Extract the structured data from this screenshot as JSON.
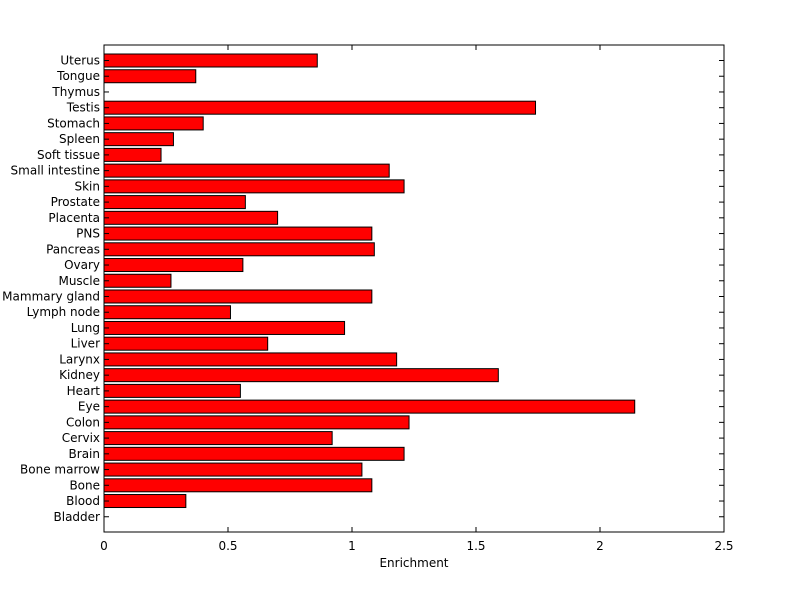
{
  "chart_data": {
    "type": "bar",
    "orientation": "horizontal",
    "title": "",
    "xlabel": "Enrichment",
    "ylabel": "",
    "xlim": [
      0,
      2.5
    ],
    "xticks": [
      0,
      0.5,
      1,
      1.5,
      2,
      2.5
    ],
    "xtick_labels": [
      "0",
      "0.5",
      "1",
      "1.5",
      "2",
      "2.5"
    ],
    "grid": false,
    "bar_color": "#ff0000",
    "edge_color": "#000000",
    "categories": [
      "Uterus",
      "Tongue",
      "Thymus",
      "Testis",
      "Stomach",
      "Spleen",
      "Soft tissue",
      "Small intestine",
      "Skin",
      "Prostate",
      "Placenta",
      "PNS",
      "Pancreas",
      "Ovary",
      "Muscle",
      "Mammary gland",
      "Lymph node",
      "Lung",
      "Liver",
      "Larynx",
      "Kidney",
      "Heart",
      "Eye",
      "Colon",
      "Cervix",
      "Brain",
      "Bone marrow",
      "Bone",
      "Blood",
      "Bladder"
    ],
    "values": [
      0.86,
      0.37,
      0.0,
      1.74,
      0.4,
      0.28,
      0.23,
      1.15,
      1.21,
      0.57,
      0.7,
      1.08,
      1.09,
      0.56,
      0.27,
      1.08,
      0.51,
      0.97,
      0.66,
      1.18,
      1.59,
      0.55,
      2.14,
      1.23,
      0.92,
      1.21,
      1.04,
      1.08,
      0.33,
      0.0
    ]
  }
}
